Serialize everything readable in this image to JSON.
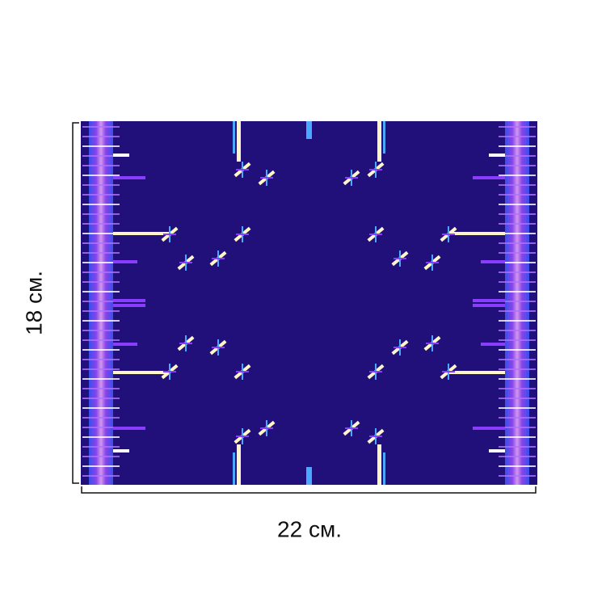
{
  "dimensions": {
    "height_label": "18 см.",
    "width_label": "22 см."
  }
}
